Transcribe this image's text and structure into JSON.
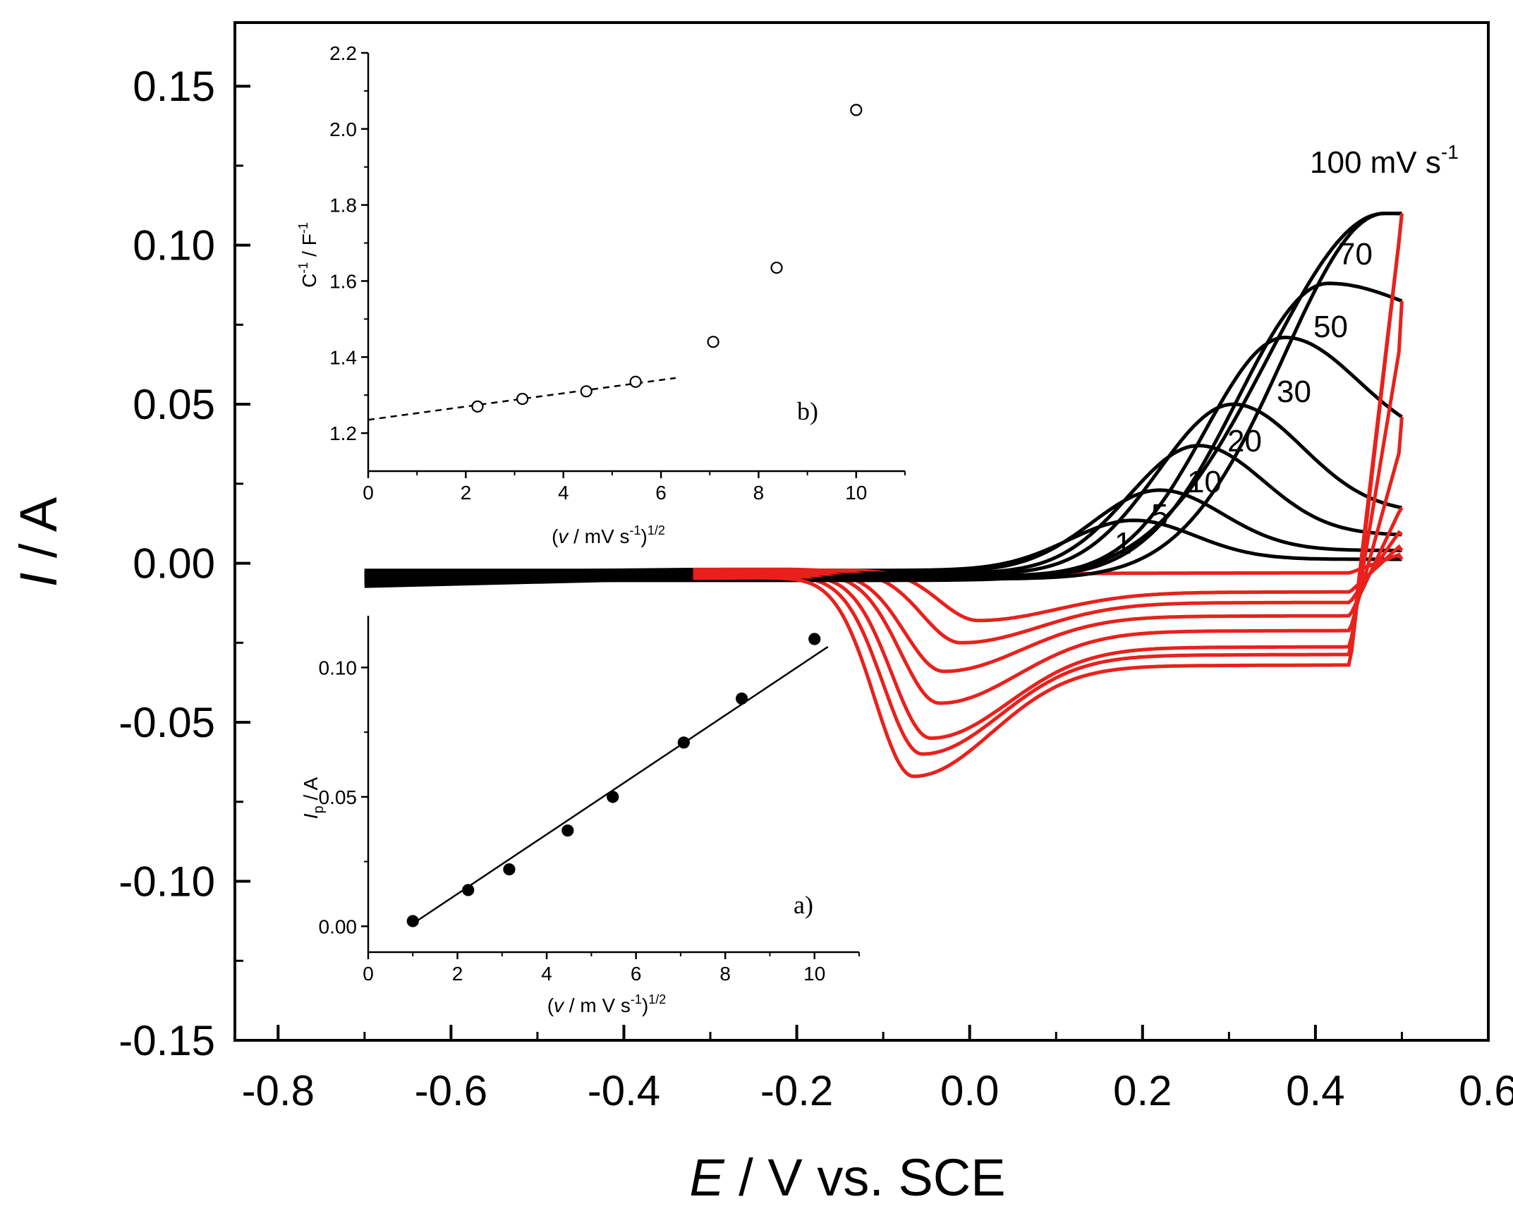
{
  "chart_data": [
    {
      "id": "main",
      "type": "line",
      "title": "",
      "xlabel": {
        "italic": "E",
        "rest": " / V vs. SCE"
      },
      "ylabel": {
        "italic": "I",
        "rest": " / A"
      },
      "xlim": [
        -0.85,
        0.6
      ],
      "ylim": [
        -0.15,
        0.17
      ],
      "x_ticks": [
        -0.8,
        -0.6,
        -0.4,
        -0.2,
        0.0,
        0.2,
        0.4,
        0.6
      ],
      "x_tick_labels": [
        "-0.8",
        "-0.6",
        "-0.4",
        "-0.2",
        "0.0",
        "0.2",
        "0.4",
        "0.6"
      ],
      "y_ticks": [
        -0.15,
        -0.1,
        -0.05,
        0.0,
        0.05,
        0.1,
        0.15
      ],
      "y_tick_labels": [
        "-0.15",
        "-0.10",
        "-0.05",
        "0.00",
        "0.05",
        "0.10",
        "0.15"
      ],
      "potential_window": [
        -0.7,
        0.5
      ],
      "colors": {
        "anodic_sweep": "#000000",
        "cathodic_sweep": "#e8211c"
      },
      "series": [
        {
          "name": "1",
          "label": "1",
          "ox_peak_E": 0.19,
          "ox_peak_I": 0.0135,
          "ox_end_I": 0.003,
          "red_peak_E": -0.08,
          "red_peak_I": -0.005,
          "baseline_I": -0.0025
        },
        {
          "name": "5",
          "label": "5",
          "ox_peak_E": 0.22,
          "ox_peak_I": 0.023,
          "ox_end_I": 0.006,
          "red_peak_E": 0.01,
          "red_peak_I": -0.018,
          "baseline_I": -0.003
        },
        {
          "name": "10",
          "label": "10",
          "ox_peak_E": 0.265,
          "ox_peak_I": 0.037,
          "ox_end_I": 0.011,
          "red_peak_E": -0.01,
          "red_peak_I": -0.025,
          "baseline_I": -0.0035
        },
        {
          "name": "20",
          "label": "20",
          "ox_peak_E": 0.305,
          "ox_peak_I": 0.05,
          "ox_end_I": 0.018,
          "red_peak_E": -0.03,
          "red_peak_I": -0.034,
          "baseline_I": -0.004
        },
        {
          "name": "30",
          "label": "30",
          "ox_peak_E": 0.365,
          "ox_peak_I": 0.071,
          "ox_end_I": 0.038,
          "red_peak_E": -0.035,
          "red_peak_I": -0.044,
          "baseline_I": -0.0045
        },
        {
          "name": "50",
          "label": "50",
          "ox_peak_E": 0.415,
          "ox_peak_I": 0.088,
          "ox_end_I": 0.072,
          "red_peak_E": -0.045,
          "red_peak_I": -0.055,
          "baseline_I": -0.005
        },
        {
          "name": "70",
          "label": "70",
          "ox_peak_E": 0.48,
          "ox_peak_I": 0.11,
          "ox_end_I": 0.109,
          "red_peak_E": -0.055,
          "red_peak_I": -0.06,
          "baseline_I": -0.0055
        },
        {
          "name": "100",
          "label": "100 mV s",
          "label_sup": "-1",
          "ox_peak_E": 0.48,
          "ox_peak_I": 0.11,
          "ox_end_I": 0.109,
          "red_peak_E": -0.065,
          "red_peak_I": -0.067,
          "baseline_I": -0.006
        }
      ]
    },
    {
      "id": "inset_b",
      "type": "scatter",
      "panel_label": "b)",
      "xlabel": {
        "pre": "(",
        "italic": "v",
        "mid": " / mV s",
        "sup1": "-1",
        "post": ")",
        "sup2": "1/2"
      },
      "ylabel": {
        "main": "C",
        "sup1": "-1",
        "mid": " / F",
        "sup2": "-1"
      },
      "xlim": [
        0,
        11
      ],
      "ylim": [
        1.1,
        2.2
      ],
      "x_ticks": [
        0,
        2,
        4,
        6,
        8,
        10
      ],
      "x_tick_labels": [
        "0",
        "2",
        "4",
        "6",
        "8",
        "10"
      ],
      "y_ticks": [
        1.2,
        1.4,
        1.6,
        1.8,
        2.0,
        2.2
      ],
      "y_tick_labels": [
        "1.2",
        "1.4",
        "1.6",
        "1.8",
        "2.0",
        "2.2"
      ],
      "marker": "open-circle",
      "points": [
        {
          "x": 2.24,
          "y": 1.27
        },
        {
          "x": 3.16,
          "y": 1.29
        },
        {
          "x": 4.47,
          "y": 1.31
        },
        {
          "x": 5.48,
          "y": 1.335
        },
        {
          "x": 7.07,
          "y": 1.44
        },
        {
          "x": 8.37,
          "y": 1.635
        },
        {
          "x": 10.0,
          "y": 2.05
        }
      ],
      "fit_line": {
        "style": "dashed",
        "x0": 0,
        "y0": 1.235,
        "x1": 6.3,
        "y1": 1.345
      }
    },
    {
      "id": "inset_a",
      "type": "scatter",
      "panel_label": "a)",
      "xlabel": {
        "pre": "(",
        "italic": "v",
        "mid": " / m V s",
        "sup1": "-1",
        "post": ")",
        "sup2": "1/2"
      },
      "ylabel": {
        "italic": "I",
        "sub": "p",
        "rest": " / A"
      },
      "xlim": [
        0,
        11
      ],
      "ylim": [
        -0.01,
        0.12
      ],
      "x_ticks": [
        0,
        2,
        4,
        6,
        8,
        10
      ],
      "x_tick_labels": [
        "0",
        "2",
        "4",
        "6",
        "8",
        "10"
      ],
      "y_ticks": [
        0.0,
        0.05,
        0.1
      ],
      "y_tick_labels": [
        "0.00",
        "0.05",
        "0.10"
      ],
      "marker": "filled-circle",
      "points": [
        {
          "x": 1.0,
          "y": 0.002
        },
        {
          "x": 2.24,
          "y": 0.014
        },
        {
          "x": 3.16,
          "y": 0.022
        },
        {
          "x": 4.47,
          "y": 0.037
        },
        {
          "x": 5.48,
          "y": 0.05
        },
        {
          "x": 7.07,
          "y": 0.071
        },
        {
          "x": 8.37,
          "y": 0.088
        },
        {
          "x": 10.0,
          "y": 0.111
        }
      ],
      "fit_line": {
        "style": "solid",
        "x0": 1.0,
        "y0": 0.001,
        "x1": 10.3,
        "y1": 0.108
      }
    }
  ]
}
